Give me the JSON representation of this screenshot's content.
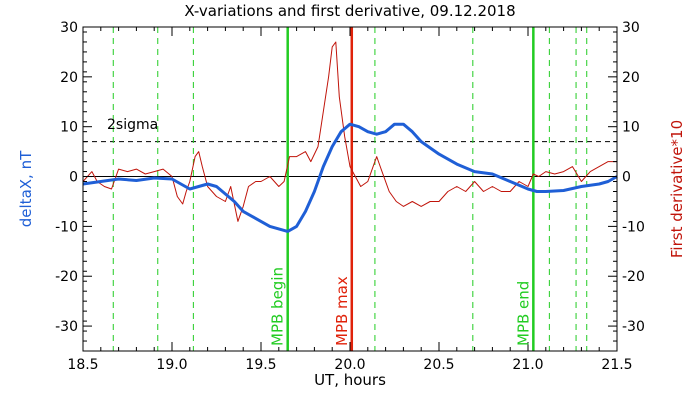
{
  "chart_data": {
    "type": "line",
    "title": "X-variations and first derivative, 09.12.2018",
    "xlabel": "UT, hours",
    "ylabel_left": "deltaX, nT",
    "ylabel_right": "First derivative*10",
    "xlim": [
      18.5,
      21.5
    ],
    "ylim": [
      -35,
      30
    ],
    "x_ticks": [
      "18.5",
      "19.0",
      "19.5",
      "20.0",
      "20.5",
      "21.0",
      "21.5"
    ],
    "y_ticks": [
      "30",
      "20",
      "10",
      "0",
      "-10",
      "-20",
      "-30"
    ],
    "colors": {
      "deltaX": "#1f5fd6",
      "derivative": "#c0140a",
      "mpb_lines": "#22cc22",
      "max_line": "#e0220a",
      "dashed_green": "#22cc22",
      "axes": "#000000"
    },
    "sigma": {
      "label": "2sigma",
      "value": 7
    },
    "zero_line": 0,
    "dashed_verticals": [
      18.67,
      18.92,
      19.12,
      20.14,
      20.69,
      21.12,
      21.27,
      21.33
    ],
    "events": [
      {
        "label": "MPB begin",
        "x": 19.65,
        "color": "#22cc22"
      },
      {
        "label": "MPB max",
        "x": 20.01,
        "color": "#e0220a"
      },
      {
        "label": "MPB end",
        "x": 21.03,
        "color": "#22cc22"
      }
    ],
    "series": [
      {
        "name": "deltaX",
        "axis": "left",
        "points": [
          [
            18.5,
            -1.5
          ],
          [
            18.6,
            -1.0
          ],
          [
            18.7,
            -0.5
          ],
          [
            18.8,
            -0.8
          ],
          [
            18.9,
            -0.3
          ],
          [
            19.0,
            -0.5
          ],
          [
            19.05,
            -1.5
          ],
          [
            19.1,
            -2.5
          ],
          [
            19.15,
            -2.0
          ],
          [
            19.2,
            -1.5
          ],
          [
            19.25,
            -2.0
          ],
          [
            19.3,
            -3.5
          ],
          [
            19.35,
            -5.0
          ],
          [
            19.4,
            -7.0
          ],
          [
            19.45,
            -8.0
          ],
          [
            19.5,
            -9.0
          ],
          [
            19.55,
            -10.0
          ],
          [
            19.6,
            -10.5
          ],
          [
            19.65,
            -11.0
          ],
          [
            19.7,
            -10.0
          ],
          [
            19.75,
            -7.0
          ],
          [
            19.8,
            -3.0
          ],
          [
            19.85,
            2.0
          ],
          [
            19.9,
            6.0
          ],
          [
            19.95,
            9.0
          ],
          [
            20.0,
            10.5
          ],
          [
            20.05,
            10.0
          ],
          [
            20.1,
            9.0
          ],
          [
            20.15,
            8.5
          ],
          [
            20.2,
            9.0
          ],
          [
            20.25,
            10.5
          ],
          [
            20.3,
            10.5
          ],
          [
            20.35,
            9.0
          ],
          [
            20.4,
            7.0
          ],
          [
            20.5,
            4.5
          ],
          [
            20.6,
            2.5
          ],
          [
            20.7,
            1.0
          ],
          [
            20.8,
            0.5
          ],
          [
            20.9,
            -1.0
          ],
          [
            21.0,
            -2.5
          ],
          [
            21.05,
            -3.0
          ],
          [
            21.1,
            -3.0
          ],
          [
            21.2,
            -2.8
          ],
          [
            21.3,
            -2.0
          ],
          [
            21.4,
            -1.5
          ],
          [
            21.45,
            -1.0
          ],
          [
            21.5,
            0.0
          ]
        ]
      },
      {
        "name": "First derivative*10",
        "axis": "right",
        "points": [
          [
            18.5,
            -1.0
          ],
          [
            18.55,
            1.0
          ],
          [
            18.58,
            -1.0
          ],
          [
            18.62,
            -2.0
          ],
          [
            18.66,
            -2.5
          ],
          [
            18.7,
            1.5
          ],
          [
            18.75,
            1.0
          ],
          [
            18.8,
            1.5
          ],
          [
            18.85,
            0.5
          ],
          [
            18.9,
            1.0
          ],
          [
            18.95,
            1.5
          ],
          [
            19.0,
            0.0
          ],
          [
            19.03,
            -4.0
          ],
          [
            19.06,
            -5.5
          ],
          [
            19.08,
            -3.0
          ],
          [
            19.1,
            -1.0
          ],
          [
            19.13,
            4.0
          ],
          [
            19.15,
            5.0
          ],
          [
            19.17,
            2.0
          ],
          [
            19.2,
            -2.0
          ],
          [
            19.25,
            -4.0
          ],
          [
            19.3,
            -5.0
          ],
          [
            19.33,
            -2.0
          ],
          [
            19.37,
            -9.0
          ],
          [
            19.4,
            -6.0
          ],
          [
            19.43,
            -2.0
          ],
          [
            19.47,
            -1.0
          ],
          [
            19.5,
            -1.0
          ],
          [
            19.55,
            0.0
          ],
          [
            19.6,
            -2.0
          ],
          [
            19.63,
            -1.0
          ],
          [
            19.66,
            4.0
          ],
          [
            19.7,
            4.0
          ],
          [
            19.75,
            5.0
          ],
          [
            19.78,
            3.0
          ],
          [
            19.82,
            6.0
          ],
          [
            19.85,
            13.0
          ],
          [
            19.88,
            20.0
          ],
          [
            19.9,
            26.0
          ],
          [
            19.92,
            27.0
          ],
          [
            19.94,
            16.0
          ],
          [
            19.97,
            8.0
          ],
          [
            20.0,
            2.0
          ],
          [
            20.03,
            0.0
          ],
          [
            20.06,
            -2.0
          ],
          [
            20.1,
            -1.0
          ],
          [
            20.13,
            2.0
          ],
          [
            20.15,
            4.0
          ],
          [
            20.18,
            1.0
          ],
          [
            20.22,
            -3.0
          ],
          [
            20.26,
            -5.0
          ],
          [
            20.3,
            -6.0
          ],
          [
            20.35,
            -5.0
          ],
          [
            20.4,
            -6.0
          ],
          [
            20.45,
            -5.0
          ],
          [
            20.5,
            -5.0
          ],
          [
            20.55,
            -3.0
          ],
          [
            20.6,
            -2.0
          ],
          [
            20.65,
            -3.0
          ],
          [
            20.7,
            -1.0
          ],
          [
            20.75,
            -3.0
          ],
          [
            20.8,
            -2.0
          ],
          [
            20.85,
            -3.0
          ],
          [
            20.9,
            -3.0
          ],
          [
            20.95,
            -1.0
          ],
          [
            21.0,
            -2.0
          ],
          [
            21.03,
            0.5
          ],
          [
            21.06,
            0.0
          ],
          [
            21.1,
            1.0
          ],
          [
            21.15,
            0.5
          ],
          [
            21.2,
            1.0
          ],
          [
            21.25,
            2.0
          ],
          [
            21.3,
            -1.0
          ],
          [
            21.35,
            1.0
          ],
          [
            21.4,
            2.0
          ],
          [
            21.45,
            3.0
          ],
          [
            21.5,
            3.0
          ]
        ]
      }
    ]
  }
}
